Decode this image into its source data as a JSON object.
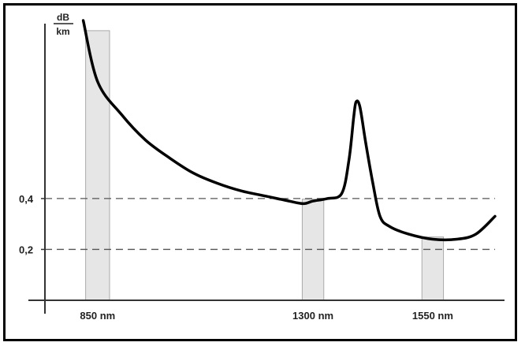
{
  "chart_data": {
    "type": "line",
    "title": "",
    "xlabel": "",
    "ylabel_numerator": "dB",
    "ylabel_denominator": "km",
    "ylim": [
      0,
      1.1
    ],
    "xlim": [
      740,
      1700
    ],
    "y_ticks": [
      {
        "value": 0.2,
        "label": "0,2"
      },
      {
        "value": 0.4,
        "label": "0,4"
      }
    ],
    "windows": [
      {
        "center": 850,
        "width": 50,
        "label": "850 nm"
      },
      {
        "center": 1300,
        "width": 45,
        "label": "1300 nm"
      },
      {
        "center": 1550,
        "width": 45,
        "label": "1550 nm"
      }
    ],
    "x": [
      820,
      850,
      900,
      950,
      1000,
      1050,
      1100,
      1150,
      1200,
      1250,
      1280,
      1300,
      1330,
      1360,
      1375,
      1385,
      1390,
      1398,
      1410,
      1425,
      1440,
      1460,
      1500,
      1550,
      1600,
      1640,
      1680
    ],
    "y": [
      1.1,
      0.86,
      0.73,
      0.63,
      0.56,
      0.5,
      0.46,
      0.43,
      0.41,
      0.39,
      0.38,
      0.39,
      0.4,
      0.42,
      0.55,
      0.72,
      0.78,
      0.76,
      0.62,
      0.46,
      0.33,
      0.29,
      0.26,
      0.24,
      0.24,
      0.26,
      0.33
    ],
    "grid": false,
    "colors": {
      "curve": "#000000",
      "band": "#e6e6e6",
      "dashed": "#555555"
    }
  }
}
